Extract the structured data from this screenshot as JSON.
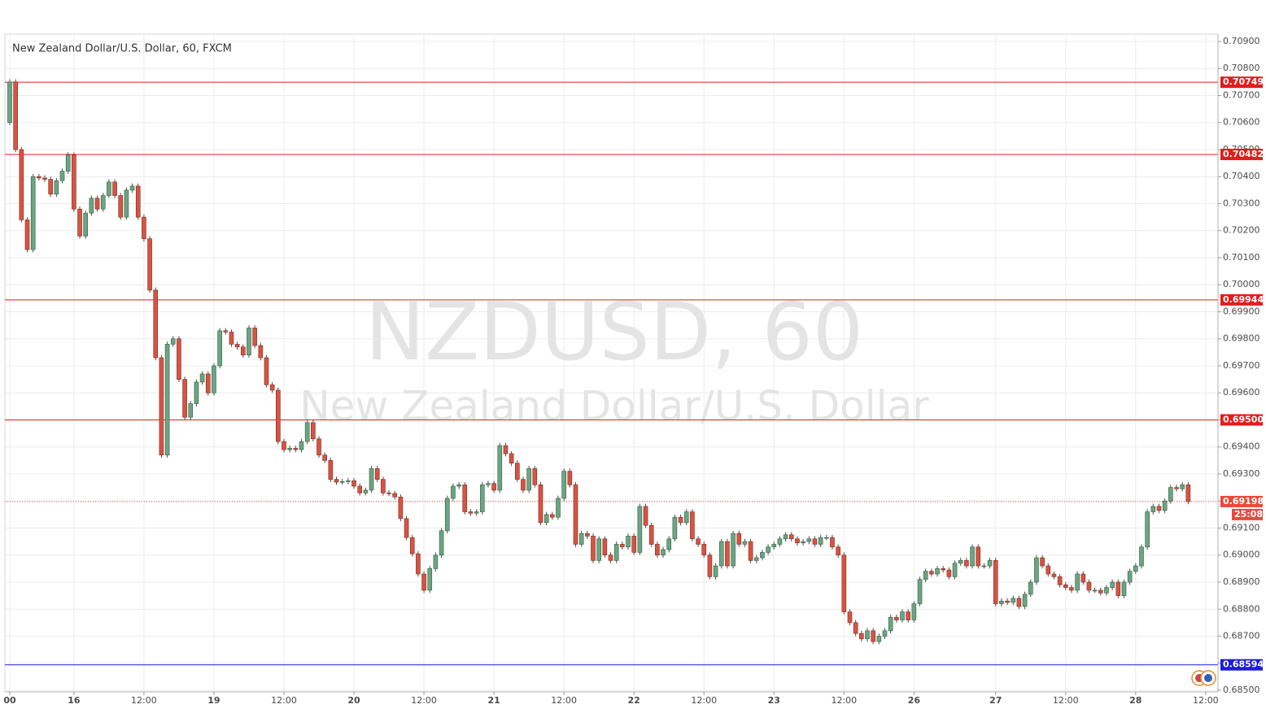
{
  "chart_data": {
    "type": "candlestick",
    "title": "New Zealand Dollar/U.S. Dollar, 60, FXCM",
    "watermark": "NZDUSD, 60",
    "watermark_subtitle": "New Zealand Dollar/U.S. Dollar",
    "up_color": "#6ba583",
    "down_color": "#d75442",
    "grid": true,
    "ylim": [
      0.68494,
      0.70927
    ],
    "yticks": [
      {
        "value": 0.709,
        "label": "0.70900"
      },
      {
        "value": 0.708,
        "label": "0.70800"
      },
      {
        "value": 0.707,
        "label": "0.70700"
      },
      {
        "value": 0.706,
        "label": "0.70600"
      },
      {
        "value": 0.705,
        "label": "0.70500"
      },
      {
        "value": 0.704,
        "label": "0.70400"
      },
      {
        "value": 0.703,
        "label": "0.70300"
      },
      {
        "value": 0.702,
        "label": "0.70200"
      },
      {
        "value": 0.701,
        "label": "0.70100"
      },
      {
        "value": 0.7,
        "label": "0.70000"
      },
      {
        "value": 0.699,
        "label": "0.69900"
      },
      {
        "value": 0.698,
        "label": "0.69800"
      },
      {
        "value": 0.697,
        "label": "0.69700"
      },
      {
        "value": 0.696,
        "label": "0.69600"
      },
      {
        "value": 0.695,
        "label": "0.69500"
      },
      {
        "value": 0.694,
        "label": "0.69400"
      },
      {
        "value": 0.693,
        "label": "0.69300"
      },
      {
        "value": 0.692,
        "label": "0.69200"
      },
      {
        "value": 0.691,
        "label": "0.69100"
      },
      {
        "value": 0.69,
        "label": "0.69000"
      },
      {
        "value": 0.689,
        "label": "0.68900"
      },
      {
        "value": 0.688,
        "label": "0.68800"
      },
      {
        "value": 0.687,
        "label": "0.68700"
      },
      {
        "value": 0.686,
        "label": "0.68600"
      },
      {
        "value": 0.685,
        "label": "0.68500"
      }
    ],
    "hlines": [
      {
        "value": 0.70749,
        "label": "0.70749",
        "color": "#e31c1c"
      },
      {
        "value": 0.70482,
        "label": "0.70482",
        "color": "#e31c1c"
      },
      {
        "value": 0.69944,
        "label": "0.69944",
        "color": "#e31c1c"
      },
      {
        "value": 0.695,
        "label": "0.69500",
        "color": "#e31c1c"
      },
      {
        "value": 0.68594,
        "label": "0.68594",
        "color": "#1c1cd6"
      }
    ],
    "last_price": {
      "value": 0.69198,
      "label": "0.69198",
      "countdown": "25:08",
      "color": "#e84a3c"
    },
    "categories": [
      "00",
      null,
      null,
      null,
      null,
      null,
      null,
      null,
      null,
      null,
      null,
      "16",
      null,
      null,
      null,
      null,
      null,
      null,
      null,
      null,
      null,
      null,
      null,
      "12:00",
      null,
      null,
      null,
      null,
      null,
      null,
      null,
      null,
      null,
      null,
      null,
      "19",
      null,
      null,
      null,
      null,
      null,
      null,
      null,
      null,
      null,
      null,
      null,
      "12:00",
      null,
      null,
      null,
      null,
      null,
      null,
      null,
      null,
      null,
      null,
      null,
      "20",
      null,
      null,
      null,
      null,
      null,
      null,
      null,
      null,
      null,
      null,
      null,
      "12:00",
      null,
      null,
      null,
      null,
      null,
      null,
      null,
      null,
      null,
      null,
      null,
      "21",
      null,
      null,
      null,
      null,
      null,
      null,
      null,
      null,
      null,
      null,
      null,
      "12:00",
      null,
      null,
      null,
      null,
      null,
      null,
      null,
      null,
      null,
      null,
      null,
      "22",
      null,
      null,
      null,
      null,
      null,
      null,
      null,
      null,
      null,
      null,
      null,
      "12:00",
      null,
      null,
      null,
      null,
      null,
      null,
      null,
      null,
      null,
      null,
      null,
      "23",
      null,
      null,
      null,
      null,
      null,
      null,
      null,
      null,
      null,
      null,
      null,
      "12:00",
      null,
      null,
      null,
      null,
      null,
      null,
      null,
      null,
      null,
      null,
      null,
      "26",
      null,
      null,
      null,
      null,
      null,
      null,
      null,
      null,
      null,
      null,
      null,
      null,
      null,
      "27",
      null,
      null,
      null,
      null,
      null,
      null,
      null,
      null,
      null,
      null,
      null,
      "12:00",
      null,
      null,
      null,
      null,
      null,
      null,
      null,
      null,
      null,
      null,
      null,
      "28",
      null,
      null,
      null,
      null,
      null,
      null,
      null,
      null,
      null,
      null,
      null,
      "12:00"
    ],
    "open": [
      0.706,
      0.7075,
      0.705,
      0.7024,
      0.7013,
      0.704,
      0.70395,
      0.7039,
      0.70335,
      0.70385,
      0.7042,
      0.7048,
      0.7028,
      0.7018,
      0.70265,
      0.7032,
      0.7028,
      0.7033,
      0.7038,
      0.7033,
      0.7025,
      0.7035,
      0.70365,
      0.7025,
      0.7017,
      0.6998,
      0.6973,
      0.6937,
      0.6978,
      0.698,
      0.6965,
      0.6951,
      0.6956,
      0.6964,
      0.6967,
      0.696,
      0.697,
      0.6983,
      0.69825,
      0.6978,
      0.6977,
      0.6974,
      0.6984,
      0.69775,
      0.6973,
      0.6963,
      0.6961,
      0.6942,
      0.6939,
      0.69395,
      0.6939,
      0.6942,
      0.6949,
      0.6943,
      0.6937,
      0.6935,
      0.6928,
      0.6927,
      0.69272,
      0.69275,
      0.69255,
      0.6923,
      0.6924,
      0.6932,
      0.6928,
      0.6923,
      0.69228,
      0.69215,
      0.69135,
      0.69065,
      0.69005,
      0.6893,
      0.6887,
      0.6895,
      0.69,
      0.6909,
      0.6921,
      0.69255,
      0.6926,
      0.6916,
      0.69155,
      0.6916,
      0.6926,
      0.69265,
      0.6924,
      0.69405,
      0.69375,
      0.6934,
      0.6928,
      0.6924,
      0.6932,
      0.6926,
      0.6912,
      0.6915,
      0.6914,
      0.6921,
      0.6931,
      0.6926,
      0.6904,
      0.6908,
      0.6907,
      0.6898,
      0.6906,
      0.69,
      0.6898,
      0.6904,
      0.6903,
      0.6907,
      0.6901,
      0.6918,
      0.6911,
      0.6904,
      0.69,
      0.6902,
      0.6906,
      0.6914,
      0.6912,
      0.6916,
      0.6906,
      0.6904,
      0.69,
      0.6892,
      0.6896,
      0.6905,
      0.6896,
      0.6908,
      0.6904,
      0.6905,
      0.6898,
      0.6899,
      0.6901,
      0.6903,
      0.6904,
      0.6906,
      0.69075,
      0.6906,
      0.69045,
      0.6905,
      0.6906,
      0.6904,
      0.69065,
      0.69065,
      0.6903,
      0.69,
      0.6879,
      0.6875,
      0.6871,
      0.6869,
      0.6872,
      0.6868,
      0.687,
      0.6872,
      0.6877,
      0.6876,
      0.6879,
      0.6876,
      0.6882,
      0.6891,
      0.6894,
      0.6893,
      0.6895,
      0.68945,
      0.6892,
      0.6897,
      0.6898,
      0.6896,
      0.6903,
      0.6896,
      0.6896,
      0.6898,
      0.6882,
      0.6883,
      0.68825,
      0.6884,
      0.6881,
      0.68855,
      0.689,
      0.6899,
      0.6896,
      0.6893,
      0.6892,
      0.6889,
      0.6888,
      0.6887,
      0.6893,
      0.689,
      0.6887,
      0.6887,
      0.6886,
      0.6888,
      0.689,
      0.6885,
      0.689,
      0.6894,
      0.6896,
      0.6903,
      0.6916,
      0.6918,
      0.69165,
      0.692,
      0.6925,
      0.69245,
      0.6926,
      null,
      null,
      null
    ],
    "high": [
      0.7076,
      0.7076,
      0.7051,
      0.7025,
      0.7041,
      0.7041,
      0.70405,
      0.704,
      0.70395,
      0.7043,
      0.7049,
      0.7049,
      0.7029,
      0.70275,
      0.7033,
      0.7033,
      0.7034,
      0.7039,
      0.7039,
      0.7034,
      0.7036,
      0.70375,
      0.70375,
      0.7026,
      0.7018,
      0.6999,
      0.6974,
      0.6979,
      0.6981,
      0.6981,
      0.6966,
      0.6957,
      0.6965,
      0.6968,
      0.6968,
      0.6971,
      0.6984,
      0.6984,
      0.69835,
      0.6979,
      0.6978,
      0.6985,
      0.6985,
      0.69785,
      0.6974,
      0.6964,
      0.6962,
      0.6943,
      0.69405,
      0.69405,
      0.6943,
      0.695,
      0.695,
      0.6944,
      0.6938,
      0.6936,
      0.6929,
      0.69282,
      0.69285,
      0.69285,
      0.69265,
      0.6925,
      0.6933,
      0.6933,
      0.6929,
      0.6924,
      0.69238,
      0.69225,
      0.69145,
      0.69075,
      0.69015,
      0.6894,
      0.6896,
      0.6901,
      0.691,
      0.6922,
      0.69265,
      0.6927,
      0.6927,
      0.6917,
      0.6917,
      0.6927,
      0.69275,
      0.69275,
      0.69415,
      0.69415,
      0.69385,
      0.6935,
      0.6929,
      0.6933,
      0.6933,
      0.6927,
      0.6916,
      0.6916,
      0.6922,
      0.6932,
      0.6932,
      0.6927,
      0.6909,
      0.6909,
      0.6908,
      0.6907,
      0.6907,
      0.6901,
      0.6905,
      0.6905,
      0.6908,
      0.6908,
      0.6919,
      0.6919,
      0.6912,
      0.6905,
      0.6903,
      0.6907,
      0.6915,
      0.6915,
      0.6917,
      0.6917,
      0.6907,
      0.6905,
      0.6901,
      0.6897,
      0.6906,
      0.6906,
      0.6909,
      0.6909,
      0.6906,
      0.6906,
      0.69,
      0.6902,
      0.6904,
      0.6905,
      0.6907,
      0.69085,
      0.69085,
      0.6907,
      0.6906,
      0.6907,
      0.6907,
      0.69075,
      0.69075,
      0.69075,
      0.6904,
      0.6901,
      0.688,
      0.6876,
      0.6872,
      0.6873,
      0.6873,
      0.6871,
      0.6873,
      0.6878,
      0.6878,
      0.688,
      0.688,
      0.6883,
      0.6892,
      0.6895,
      0.6895,
      0.6896,
      0.6896,
      0.68955,
      0.6898,
      0.6899,
      0.6899,
      0.6904,
      0.6904,
      0.6897,
      0.6899,
      0.6899,
      0.6884,
      0.6884,
      0.6885,
      0.6885,
      0.68865,
      0.6891,
      0.69,
      0.69,
      0.6897,
      0.6894,
      0.6893,
      0.689,
      0.6889,
      0.6894,
      0.6894,
      0.6891,
      0.6888,
      0.6888,
      0.6889,
      0.6891,
      0.6891,
      0.6891,
      0.6895,
      0.6897,
      0.6904,
      0.6917,
      0.6919,
      0.6919,
      0.6921,
      0.6926,
      0.6926,
      0.6927,
      0.6927,
      null,
      null,
      null
    ],
    "low": [
      0.7059,
      0.7049,
      0.7023,
      0.7012,
      0.7012,
      0.70385,
      0.7038,
      0.70325,
      0.70325,
      0.70375,
      0.7041,
      0.7027,
      0.7017,
      0.7017,
      0.70255,
      0.7027,
      0.7027,
      0.7032,
      0.7032,
      0.7024,
      0.7024,
      0.7034,
      0.7024,
      0.7016,
      0.6997,
      0.6972,
      0.6936,
      0.6936,
      0.6977,
      0.6964,
      0.695,
      0.695,
      0.6955,
      0.6963,
      0.6959,
      0.6959,
      0.6969,
      0.69815,
      0.6977,
      0.6976,
      0.6973,
      0.6973,
      0.69765,
      0.6972,
      0.6962,
      0.696,
      0.6941,
      0.6938,
      0.6938,
      0.6938,
      0.6938,
      0.6941,
      0.6942,
      0.6936,
      0.6934,
      0.6927,
      0.6926,
      0.6926,
      0.69262,
      0.69245,
      0.6922,
      0.6922,
      0.6923,
      0.6927,
      0.6922,
      0.69218,
      0.69205,
      0.69125,
      0.69055,
      0.68995,
      0.6892,
      0.6886,
      0.6886,
      0.6894,
      0.6899,
      0.6908,
      0.692,
      0.69245,
      0.6915,
      0.69145,
      0.69145,
      0.6915,
      0.6925,
      0.6923,
      0.6923,
      0.69365,
      0.6933,
      0.6927,
      0.6923,
      0.6923,
      0.6925,
      0.6911,
      0.6911,
      0.6913,
      0.6913,
      0.692,
      0.6925,
      0.6903,
      0.6903,
      0.6906,
      0.6897,
      0.6897,
      0.6899,
      0.6897,
      0.6897,
      0.6902,
      0.6902,
      0.69,
      0.69,
      0.691,
      0.6903,
      0.6899,
      0.6899,
      0.6901,
      0.6905,
      0.6911,
      0.6911,
      0.6905,
      0.6903,
      0.6899,
      0.6891,
      0.6891,
      0.6895,
      0.6895,
      0.6895,
      0.6903,
      0.6903,
      0.6897,
      0.6897,
      0.6898,
      0.69,
      0.6902,
      0.6903,
      0.6905,
      0.6905,
      0.69035,
      0.69035,
      0.6904,
      0.6903,
      0.6903,
      0.69055,
      0.6902,
      0.6899,
      0.6878,
      0.6874,
      0.687,
      0.6868,
      0.6868,
      0.6867,
      0.6867,
      0.6869,
      0.6871,
      0.6875,
      0.6875,
      0.6875,
      0.6875,
      0.6881,
      0.689,
      0.6892,
      0.6892,
      0.68935,
      0.6891,
      0.6891,
      0.6896,
      0.6895,
      0.6895,
      0.6895,
      0.6895,
      0.6895,
      0.6881,
      0.6881,
      0.68815,
      0.68815,
      0.688,
      0.688,
      0.68845,
      0.6889,
      0.6895,
      0.6892,
      0.6891,
      0.6888,
      0.6887,
      0.6886,
      0.6886,
      0.6889,
      0.6886,
      0.6886,
      0.6885,
      0.6885,
      0.6887,
      0.6884,
      0.6884,
      0.6889,
      0.6893,
      0.6895,
      0.6902,
      0.6915,
      0.69155,
      0.69155,
      0.6919,
      0.69235,
      0.69235,
      0.69188,
      null,
      null,
      null
    ],
    "close": [
      0.7075,
      0.705,
      0.7024,
      0.7013,
      0.704,
      0.70395,
      0.7039,
      0.70335,
      0.70385,
      0.7042,
      0.7048,
      0.7028,
      0.7018,
      0.70265,
      0.7032,
      0.7028,
      0.7033,
      0.7038,
      0.7033,
      0.7025,
      0.7035,
      0.70365,
      0.7025,
      0.7017,
      0.6998,
      0.6973,
      0.6937,
      0.6978,
      0.698,
      0.6965,
      0.6951,
      0.6956,
      0.6964,
      0.6967,
      0.696,
      0.697,
      0.6983,
      0.69825,
      0.6978,
      0.6977,
      0.6974,
      0.6984,
      0.69775,
      0.6973,
      0.6963,
      0.6961,
      0.6942,
      0.6939,
      0.69395,
      0.6939,
      0.6942,
      0.6949,
      0.6943,
      0.6937,
      0.6935,
      0.6928,
      0.6927,
      0.69272,
      0.69275,
      0.69255,
      0.6923,
      0.6924,
      0.6932,
      0.6928,
      0.6923,
      0.69228,
      0.69215,
      0.69135,
      0.69065,
      0.69005,
      0.6893,
      0.6887,
      0.6895,
      0.69,
      0.6909,
      0.6921,
      0.69255,
      0.6926,
      0.6916,
      0.69155,
      0.6916,
      0.6926,
      0.69265,
      0.6924,
      0.69405,
      0.69375,
      0.6934,
      0.6928,
      0.6924,
      0.6932,
      0.6926,
      0.6912,
      0.6915,
      0.6914,
      0.6921,
      0.6931,
      0.6926,
      0.6904,
      0.6908,
      0.6907,
      0.6898,
      0.6906,
      0.69,
      0.6898,
      0.6904,
      0.6903,
      0.6907,
      0.6901,
      0.6918,
      0.6911,
      0.6904,
      0.69,
      0.6902,
      0.6906,
      0.6914,
      0.6912,
      0.6916,
      0.6906,
      0.6904,
      0.69,
      0.6892,
      0.6896,
      0.6905,
      0.6896,
      0.6908,
      0.6904,
      0.6905,
      0.6898,
      0.6899,
      0.6901,
      0.6903,
      0.6904,
      0.6906,
      0.69075,
      0.6906,
      0.69045,
      0.6905,
      0.6906,
      0.6904,
      0.69065,
      0.69065,
      0.6903,
      0.69,
      0.6879,
      0.6875,
      0.6871,
      0.6869,
      0.6872,
      0.6868,
      0.687,
      0.6872,
      0.6877,
      0.6876,
      0.6879,
      0.6876,
      0.6882,
      0.6891,
      0.6894,
      0.6893,
      0.6895,
      0.68945,
      0.6892,
      0.6897,
      0.6898,
      0.6896,
      0.6903,
      0.6896,
      0.6896,
      0.6898,
      0.6882,
      0.6883,
      0.68825,
      0.6884,
      0.6881,
      0.68855,
      0.689,
      0.6899,
      0.6896,
      0.6893,
      0.6892,
      0.6889,
      0.6888,
      0.6887,
      0.6893,
      0.689,
      0.6887,
      0.6887,
      0.6886,
      0.6888,
      0.689,
      0.6885,
      0.689,
      0.6894,
      0.6896,
      0.6903,
      0.6916,
      0.6918,
      0.69165,
      0.692,
      0.6925,
      0.69245,
      0.6926,
      0.69198,
      null,
      null,
      null
    ]
  }
}
